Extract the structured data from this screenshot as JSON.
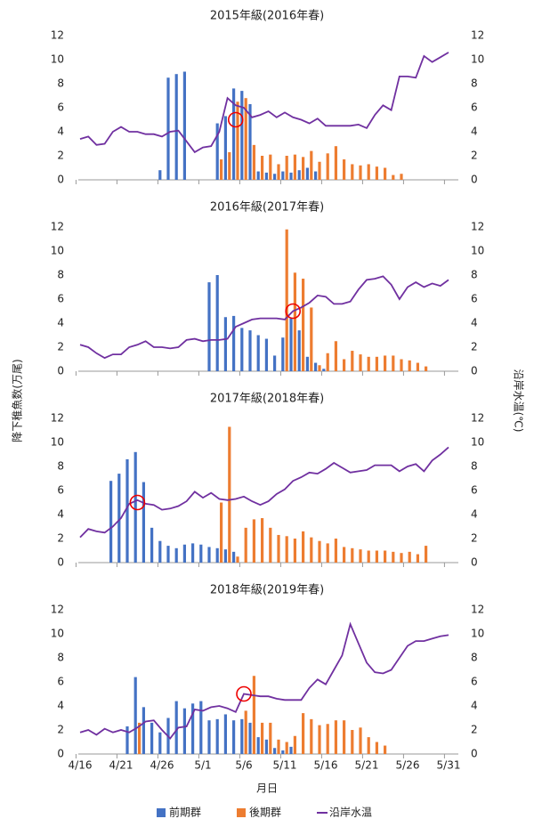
{
  "chart_data": [
    {
      "type": "bar",
      "title": "2015年級(2016年春)",
      "ylabel": "降下稚魚数(万尾)",
      "y2label": "沿岸水温(℃)",
      "ylim": [
        0,
        12
      ],
      "yticks": [
        0,
        2,
        4,
        6,
        8,
        10,
        12
      ],
      "y2lim": [
        0,
        12
      ],
      "y2ticks": [
        0,
        2,
        4,
        6,
        8,
        10,
        12
      ],
      "highlight": {
        "x": 19,
        "y": 5
      },
      "series": [
        {
          "name": "前期群",
          "color": "#4472c4",
          "values": [
            null,
            null,
            null,
            null,
            null,
            null,
            null,
            null,
            null,
            null,
            0.8,
            8.5,
            8.8,
            9.0,
            null,
            null,
            null,
            4.7,
            5.3,
            7.6,
            7.4,
            6.3,
            0.7,
            0.6,
            0.5,
            0.7,
            0.6,
            0.8,
            1.0,
            0.7,
            null,
            null,
            null,
            null,
            null,
            null,
            null,
            null,
            null,
            null,
            null,
            null,
            null,
            null,
            null,
            null
          ]
        },
        {
          "name": "後期群",
          "color": "#ed7d31",
          "values": [
            null,
            null,
            null,
            null,
            null,
            null,
            null,
            null,
            null,
            null,
            null,
            null,
            null,
            null,
            null,
            null,
            null,
            1.7,
            2.3,
            6.5,
            6.8,
            2.9,
            2.0,
            2.1,
            1.3,
            2.0,
            2.1,
            1.9,
            2.4,
            1.5,
            2.2,
            2.8,
            1.7,
            1.3,
            1.2,
            1.3,
            1.1,
            1.0,
            0.4,
            0.5,
            null,
            null,
            null,
            null,
            null,
            null
          ]
        },
        {
          "name": "沿岸水温",
          "color": "#7030a0",
          "axis": "y2",
          "values": [
            3.4,
            3.6,
            2.9,
            3.0,
            4.0,
            4.4,
            4.0,
            4.0,
            3.8,
            3.8,
            3.6,
            4.0,
            4.1,
            3.2,
            2.3,
            2.7,
            2.8,
            4.0,
            6.8,
            6.2,
            6.0,
            5.2,
            5.4,
            5.7,
            5.2,
            5.6,
            5.2,
            5.0,
            4.7,
            5.1,
            4.5,
            4.5,
            4.5,
            4.5,
            4.6,
            4.3,
            5.4,
            6.2,
            5.8,
            8.6,
            8.6,
            8.5,
            10.3,
            9.8,
            10.2,
            10.6
          ]
        }
      ]
    },
    {
      "type": "bar",
      "title": "2016年級(2017年春)",
      "ylim": [
        0,
        12
      ],
      "yticks": [
        0,
        2,
        4,
        6,
        8,
        10,
        12
      ],
      "y2lim": [
        0,
        12
      ],
      "y2ticks": [
        0,
        2,
        4,
        6,
        8,
        10,
        12
      ],
      "highlight": {
        "x": 26,
        "y": 5
      },
      "series": [
        {
          "color": "#4472c4",
          "values": [
            null,
            null,
            null,
            null,
            null,
            null,
            null,
            null,
            null,
            null,
            null,
            null,
            null,
            null,
            null,
            null,
            7.4,
            8.0,
            4.5,
            4.6,
            3.6,
            3.4,
            3.0,
            2.7,
            1.3,
            2.8,
            4.4,
            3.4,
            1.2,
            0.7,
            0.2,
            null,
            null,
            null,
            null,
            null,
            null,
            null,
            null,
            null,
            null,
            null,
            null,
            null,
            null,
            null
          ]
        },
        {
          "color": "#ed7d31",
          "values": [
            null,
            null,
            null,
            null,
            null,
            null,
            null,
            null,
            null,
            null,
            null,
            null,
            null,
            null,
            null,
            null,
            null,
            null,
            null,
            null,
            null,
            null,
            null,
            null,
            null,
            11.8,
            8.2,
            7.7,
            5.3,
            0.5,
            1.5,
            2.5,
            1.0,
            1.7,
            1.4,
            1.2,
            1.2,
            1.3,
            1.3,
            1.0,
            0.9,
            0.7,
            0.4,
            null,
            null,
            null
          ]
        },
        {
          "color": "#7030a0",
          "axis": "y2",
          "values": [
            2.2,
            2.0,
            1.5,
            1.1,
            1.4,
            1.4,
            2.0,
            2.2,
            2.5,
            2.0,
            2.0,
            1.9,
            2.0,
            2.6,
            2.7,
            2.5,
            2.6,
            2.6,
            2.7,
            3.7,
            4.0,
            4.3,
            4.4,
            4.4,
            4.4,
            4.3,
            5.0,
            5.3,
            5.7,
            6.3,
            6.2,
            5.6,
            5.6,
            5.8,
            6.8,
            7.6,
            7.7,
            7.9,
            7.2,
            6.0,
            7.0,
            7.4,
            7.0,
            7.3,
            7.1,
            7.6
          ]
        }
      ]
    },
    {
      "type": "bar",
      "title": "2017年級(2018年春)",
      "ylim": [
        0,
        12
      ],
      "yticks": [
        0,
        2,
        4,
        6,
        8,
        10,
        12
      ],
      "y2lim": [
        0,
        12
      ],
      "y2ticks": [
        0,
        2,
        4,
        6,
        8,
        10,
        12
      ],
      "highlight": {
        "x": 7,
        "y": 5
      },
      "series": [
        {
          "color": "#4472c4",
          "values": [
            null,
            null,
            null,
            null,
            6.8,
            7.4,
            8.6,
            9.2,
            6.7,
            2.9,
            1.8,
            1.4,
            1.2,
            1.5,
            1.6,
            1.5,
            1.3,
            1.2,
            1.1,
            0.9,
            null,
            null,
            null,
            null,
            null,
            null,
            null,
            null,
            null,
            null,
            null,
            null,
            null,
            null,
            null,
            null,
            null,
            null,
            null,
            null,
            null,
            null,
            null,
            null,
            null,
            null
          ]
        },
        {
          "color": "#ed7d31",
          "values": [
            null,
            null,
            null,
            null,
            null,
            null,
            null,
            null,
            null,
            null,
            null,
            null,
            null,
            null,
            null,
            null,
            null,
            5.0,
            11.3,
            0.5,
            2.9,
            3.6,
            3.7,
            2.9,
            2.3,
            2.2,
            2.0,
            2.6,
            2.1,
            1.8,
            1.6,
            2.0,
            1.3,
            1.2,
            1.1,
            1.0,
            1.0,
            1.0,
            0.9,
            0.8,
            0.9,
            0.7,
            1.4,
            null,
            null,
            null
          ]
        },
        {
          "color": "#7030a0",
          "axis": "y2",
          "values": [
            2.1,
            2.8,
            2.6,
            2.5,
            3.0,
            3.7,
            4.9,
            5.2,
            4.9,
            4.8,
            4.4,
            4.5,
            4.7,
            5.1,
            5.9,
            5.4,
            5.8,
            5.3,
            5.2,
            5.3,
            5.5,
            5.1,
            4.8,
            5.1,
            5.7,
            6.1,
            6.8,
            7.1,
            7.5,
            7.4,
            7.8,
            8.3,
            7.9,
            7.5,
            7.6,
            7.7,
            8.1,
            8.1,
            8.1,
            7.6,
            8.0,
            8.2,
            7.6,
            8.5,
            9.0,
            9.6
          ]
        }
      ]
    },
    {
      "type": "bar",
      "title": "2018年級(2019年春)",
      "xlabel": "月日",
      "categories": [
        "4/16",
        null,
        null,
        null,
        null,
        "4/21",
        null,
        null,
        null,
        null,
        "4/26",
        null,
        null,
        null,
        null,
        "5/1",
        null,
        null,
        null,
        null,
        "5/6",
        null,
        null,
        null,
        null,
        "5/11",
        null,
        null,
        null,
        null,
        "5/16",
        null,
        null,
        null,
        null,
        "5/21",
        null,
        null,
        null,
        null,
        "5/26",
        null,
        null,
        null,
        null,
        "5/31"
      ],
      "ylim": [
        0,
        12
      ],
      "yticks": [
        0,
        2,
        4,
        6,
        8,
        10,
        12
      ],
      "y2lim": [
        0,
        12
      ],
      "y2ticks": [
        0,
        2,
        4,
        6,
        8,
        10,
        12
      ],
      "highlight": {
        "x": 20,
        "y": 5
      },
      "series": [
        {
          "color": "#4472c4",
          "values": [
            null,
            null,
            null,
            null,
            null,
            null,
            2.3,
            6.4,
            3.9,
            2.6,
            1.8,
            3.0,
            4.4,
            3.8,
            4.2,
            4.4,
            2.8,
            2.9,
            3.3,
            2.8,
            2.9,
            2.6,
            1.4,
            1.2,
            0.5,
            0.3,
            0.6,
            null,
            null,
            null,
            null,
            null,
            null,
            null,
            null,
            null,
            null,
            null,
            null,
            null,
            null,
            null,
            null,
            null,
            null,
            null
          ]
        },
        {
          "color": "#ed7d31",
          "values": [
            null,
            null,
            null,
            null,
            null,
            null,
            null,
            2.6,
            null,
            null,
            null,
            null,
            null,
            null,
            null,
            null,
            null,
            null,
            null,
            null,
            3.6,
            6.5,
            2.6,
            2.6,
            1.2,
            1.0,
            1.5,
            3.4,
            2.9,
            2.4,
            2.5,
            2.8,
            2.8,
            2.0,
            2.2,
            1.4,
            1.0,
            0.7,
            null,
            null,
            null,
            null,
            null,
            null,
            null,
            null
          ]
        },
        {
          "color": "#7030a0",
          "axis": "y2",
          "values": [
            1.8,
            2.0,
            1.6,
            2.1,
            1.8,
            2.0,
            1.8,
            2.2,
            2.7,
            2.8,
            2.0,
            1.3,
            2.2,
            2.3,
            3.7,
            3.6,
            3.9,
            4.0,
            3.8,
            3.5,
            5.0,
            4.9,
            4.8,
            4.8,
            4.6,
            4.5,
            4.5,
            4.5,
            5.5,
            6.2,
            5.8,
            7.0,
            8.2,
            10.8,
            9.2,
            7.6,
            6.8,
            6.7,
            7.0,
            8.0,
            9.0,
            9.4,
            9.4,
            9.6,
            9.8,
            9.9
          ]
        }
      ]
    }
  ]
}
